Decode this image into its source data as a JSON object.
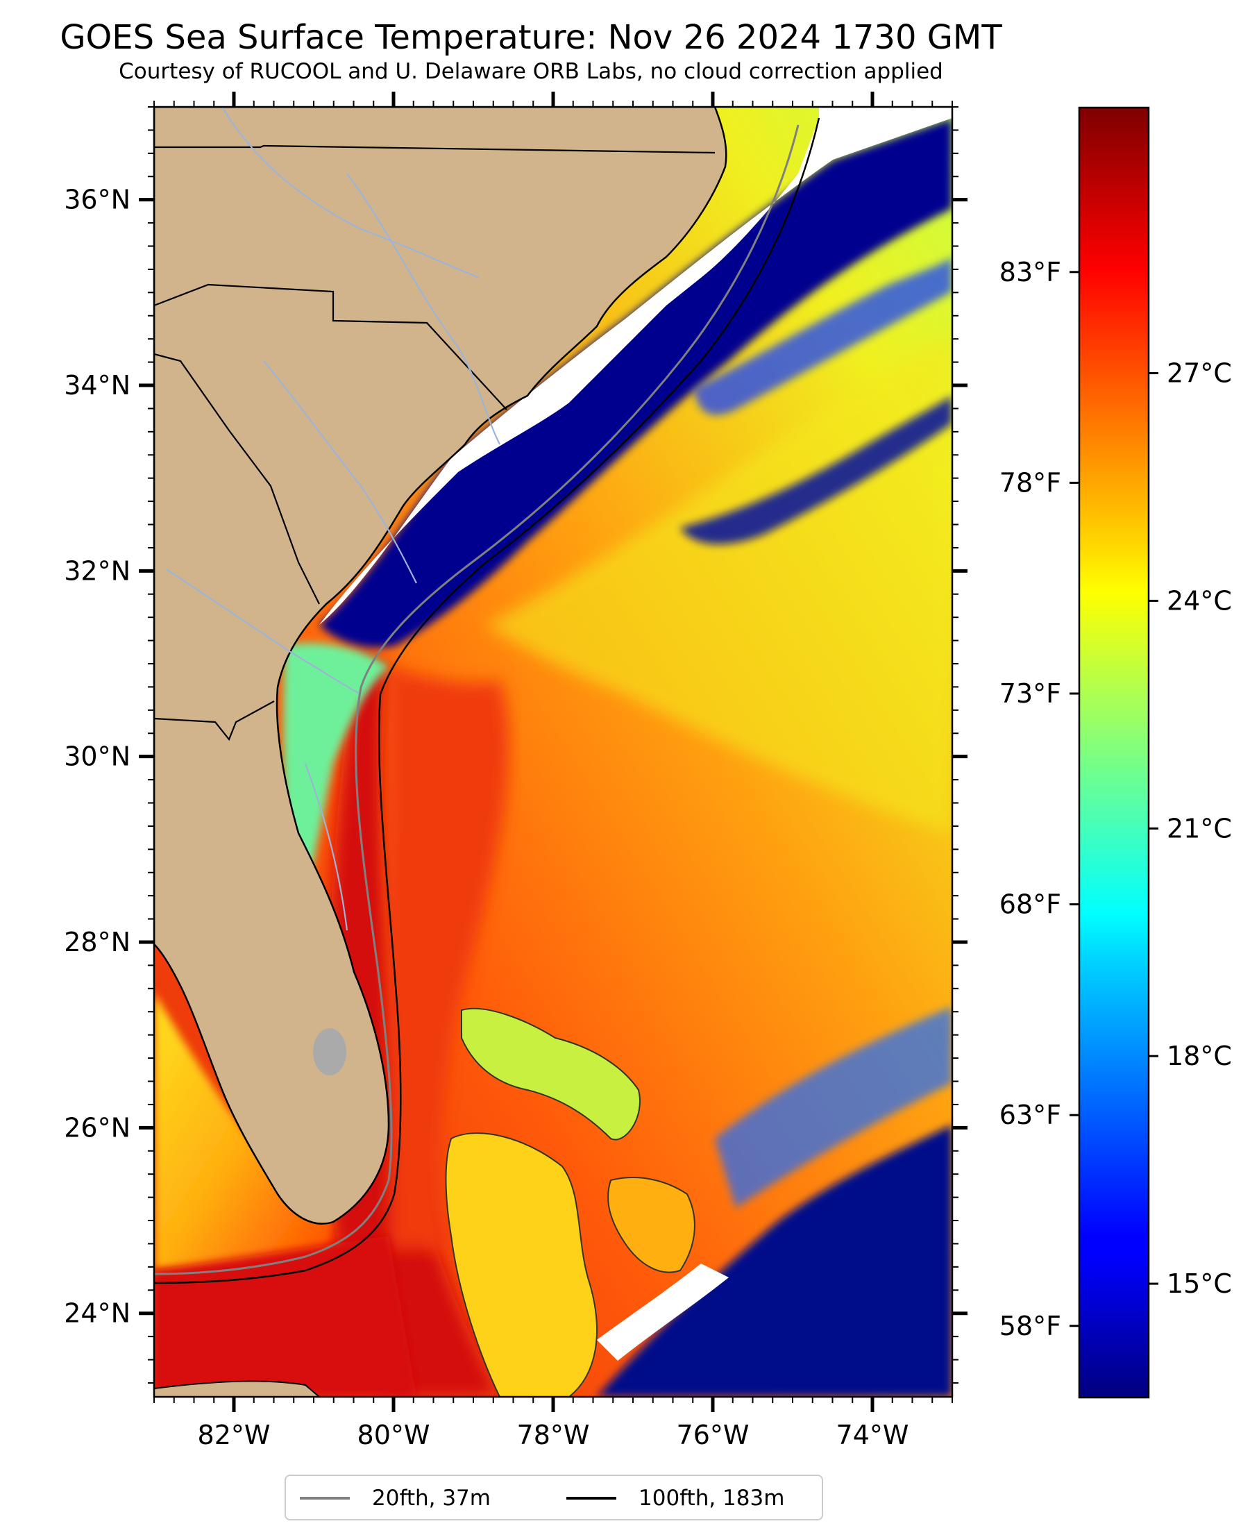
{
  "map": {
    "title": "GOES Sea Surface Temperature: Nov 26 2024 1730 GMT",
    "subtitle": "Courtesy of RUCOOL and U. Delaware ORB Labs, no cloud correction applied",
    "extent": {
      "lon_min": -83,
      "lon_max": -73,
      "lat_min": 23.1,
      "lat_max": 37.0
    },
    "lat_ticks": [
      {
        "value": 24,
        "label": "24°N"
      },
      {
        "value": 26,
        "label": "26°N"
      },
      {
        "value": 28,
        "label": "28°N"
      },
      {
        "value": 30,
        "label": "30°N"
      },
      {
        "value": 32,
        "label": "32°N"
      },
      {
        "value": 34,
        "label": "34°N"
      },
      {
        "value": 36,
        "label": "36°N"
      }
    ],
    "lon_ticks": [
      {
        "value": -82,
        "label": "82°W"
      },
      {
        "value": -80,
        "label": "80°W"
      },
      {
        "value": -78,
        "label": "78°W"
      },
      {
        "value": -76,
        "label": "76°W"
      },
      {
        "value": -74,
        "label": "74°W"
      }
    ],
    "colors": {
      "land": "#d2b48c",
      "border": "#000000",
      "river": "#9db4d6",
      "isobath_20fth": "#808080",
      "isobath_100fth": "#000000",
      "cloud_mask": "#ffffff"
    },
    "colormap": "jet"
  },
  "colorbar": {
    "celsius_range": [
      13.5,
      30.5
    ],
    "celsius_ticks": [
      {
        "value": 15,
        "label": "15°C"
      },
      {
        "value": 18,
        "label": "18°C"
      },
      {
        "value": 21,
        "label": "21°C"
      },
      {
        "value": 24,
        "label": "24°C"
      },
      {
        "value": 27,
        "label": "27°C"
      }
    ],
    "fahrenheit_ticks": [
      {
        "value": 58,
        "label": "58°F"
      },
      {
        "value": 63,
        "label": "63°F"
      },
      {
        "value": 68,
        "label": "68°F"
      },
      {
        "value": 73,
        "label": "73°F"
      },
      {
        "value": 78,
        "label": "78°F"
      },
      {
        "value": 83,
        "label": "83°F"
      }
    ]
  },
  "legend": {
    "items": [
      {
        "label": "20fth, 37m",
        "color": "#808080"
      },
      {
        "label": "100fth, 183m",
        "color": "#000000"
      }
    ]
  }
}
